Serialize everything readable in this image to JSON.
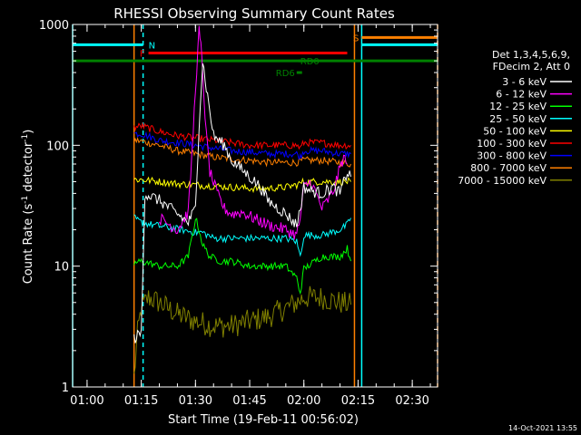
{
  "chart_data": {
    "type": "line",
    "title": "RHESSI Observing Summary Count Rates",
    "xlabel": "Start Time (19-Feb-11 00:56:02)",
    "ylabel": "Count Rate (s⁻¹ detector⁻¹)",
    "ylabel_main": "Count Rate (s",
    "ylabel_sup1": "-1",
    "ylabel_mid": " detector",
    "ylabel_sup2": "-1",
    "ylabel_end": ")",
    "yscale": "log",
    "ylim": [
      1,
      1000
    ],
    "xlim_minutes": [
      56.0,
      157.0
    ],
    "x_ticks": [
      "01:00",
      "01:15",
      "01:30",
      "01:45",
      "02:00",
      "02:15",
      "02:30"
    ],
    "x_tick_minutes": [
      60,
      75,
      90,
      105,
      120,
      135,
      150
    ],
    "y_ticks": [
      "1",
      "10",
      "100",
      "1000"
    ],
    "y_tick_values": [
      1,
      10,
      100,
      1000
    ],
    "legend_header": [
      "Det 1,3,4,5,6,9,",
      "FDecim 2, Att 0"
    ],
    "legend_position": "right",
    "series": [
      {
        "name": "3 - 6 keV",
        "color": "#ffffff",
        "x": [
          73,
          75,
          76,
          80,
          85,
          88,
          90,
          91,
          92,
          93,
          95,
          98,
          100,
          105,
          108,
          110,
          115,
          118,
          119,
          120,
          122,
          125,
          128,
          130,
          132,
          133
        ],
        "y": [
          2.5,
          2.8,
          40,
          35,
          27,
          23,
          30,
          150,
          500,
          300,
          120,
          100,
          75,
          55,
          45,
          35,
          27,
          22,
          30,
          45,
          42,
          40,
          45,
          40,
          60,
          55
        ]
      },
      {
        "name": "6 - 12 keV",
        "color": "#ff00ff",
        "x": [
          80,
          85,
          88,
          89,
          90,
          91,
          91.5,
          92,
          93,
          94,
          96,
          98,
          100,
          103,
          106,
          110,
          115,
          118,
          119,
          120,
          122,
          125,
          128,
          130,
          131,
          132
        ],
        "y": [
          25,
          20,
          28,
          80,
          300,
          880,
          650,
          400,
          120,
          60,
          40,
          30,
          27,
          28,
          25,
          22,
          20,
          18,
          25,
          45,
          50,
          30,
          40,
          65,
          80,
          70
        ]
      },
      {
        "name": "12 - 25 keV",
        "color": "#00ff00",
        "x": [
          73,
          75,
          80,
          85,
          88,
          89,
          90,
          91,
          92,
          94,
          97,
          100,
          105,
          110,
          115,
          118,
          119,
          120,
          125,
          130,
          132,
          133
        ],
        "y": [
          10.5,
          11,
          10,
          10,
          12,
          17,
          25,
          20,
          15,
          12,
          11,
          11,
          10,
          10,
          10,
          8,
          6,
          9.5,
          12,
          12,
          14,
          11
        ]
      },
      {
        "name": "25 - 50 keV",
        "color": "#00ffff",
        "x": [
          73,
          75,
          78,
          82,
          86,
          90,
          92,
          95,
          100,
          105,
          110,
          115,
          118,
          119,
          120,
          125,
          130,
          132,
          133
        ],
        "y": [
          25,
          23,
          22,
          21,
          20,
          19,
          19,
          17,
          17,
          17,
          17,
          17,
          16,
          12,
          18,
          18,
          20,
          22,
          25
        ]
      },
      {
        "name": "50 - 100 keV",
        "color": "#ffff00",
        "x": [
          73,
          75,
          80,
          85,
          90,
          95,
          100,
          105,
          110,
          115,
          118,
          120,
          125,
          130,
          133
        ],
        "y": [
          52,
          52,
          50,
          48,
          47,
          46,
          45,
          44,
          44,
          45,
          47,
          50,
          50,
          50,
          50
        ]
      },
      {
        "name": "100 - 300 keV",
        "color": "#ff0000",
        "x": [
          73,
          75,
          80,
          85,
          90,
          95,
          100,
          105,
          110,
          115,
          118,
          119,
          120,
          125,
          130,
          133
        ],
        "y": [
          140,
          145,
          130,
          120,
          115,
          110,
          105,
          100,
          100,
          100,
          100,
          95,
          105,
          105,
          100,
          100
        ]
      },
      {
        "name": "300 - 800 keV",
        "color": "#0000ff",
        "x": [
          73,
          75,
          80,
          85,
          90,
          95,
          100,
          105,
          110,
          115,
          118,
          119,
          120,
          125,
          130,
          133
        ],
        "y": [
          125,
          125,
          110,
          105,
          100,
          95,
          90,
          88,
          85,
          85,
          85,
          80,
          90,
          90,
          85,
          85
        ]
      },
      {
        "name": "800 - 7000 keV",
        "color": "#ff8000",
        "x": [
          73,
          75,
          80,
          85,
          90,
          95,
          100,
          105,
          110,
          115,
          118,
          120,
          125,
          130,
          133
        ],
        "y": [
          110,
          108,
          100,
          90,
          85,
          80,
          77,
          75,
          72,
          72,
          72,
          75,
          75,
          72,
          70
        ]
      },
      {
        "name": "7000 - 15000 keV",
        "color": "#808000",
        "x": [
          73,
          74,
          75,
          77,
          80,
          85,
          90,
          95,
          100,
          105,
          110,
          115,
          118,
          120,
          125,
          130,
          133
        ],
        "y": [
          1.2,
          2.8,
          4.5,
          5.5,
          5.0,
          4.0,
          3.5,
          3.2,
          3.2,
          3.5,
          3.8,
          4.5,
          5.0,
          5.5,
          5.5,
          5.0,
          4.8
        ]
      }
    ],
    "annotations": [
      {
        "label": "N",
        "color": "#00ffff",
        "x_start": 56.0,
        "x_end": 75.5,
        "y": 680
      },
      {
        "label": "S",
        "color": "#ff8000",
        "x_start": 136.0,
        "x_end": 157.0,
        "y": 780
      },
      {
        "label": "",
        "color": "#00ffff",
        "x_start": 136.0,
        "x_end": 157.0,
        "y": 680
      },
      {
        "label": "F",
        "color": "#ff0000",
        "x_start": 77.0,
        "x_end": 132.0,
        "y": 580
      },
      {
        "label": "",
        "color": "#008000",
        "x_start": 56.0,
        "x_end": 157.0,
        "y": 500
      },
      {
        "label": "RD0",
        "color": "#008000",
        "x_start": 118.5,
        "x_end": 120.5,
        "y": 500
      },
      {
        "label": "RD6",
        "color": "#008000",
        "x_start": 118.0,
        "x_end": 119.5,
        "y": 400
      }
    ],
    "vlines": [
      {
        "x": 56.0,
        "color": "#00ffff",
        "style": "solid"
      },
      {
        "x": 75.5,
        "color": "#00ffff",
        "style": "dashed"
      },
      {
        "x": 136.0,
        "color": "#00ffff",
        "style": "solid"
      },
      {
        "x": 157.0,
        "color": "#ff8000",
        "style": "dashed"
      },
      {
        "x": 73.0,
        "color": "#ff8000",
        "style": "solid"
      },
      {
        "x": 134.0,
        "color": "#ff8000",
        "style": "solid"
      }
    ],
    "footer": "14-Oct-2021 13:55"
  }
}
